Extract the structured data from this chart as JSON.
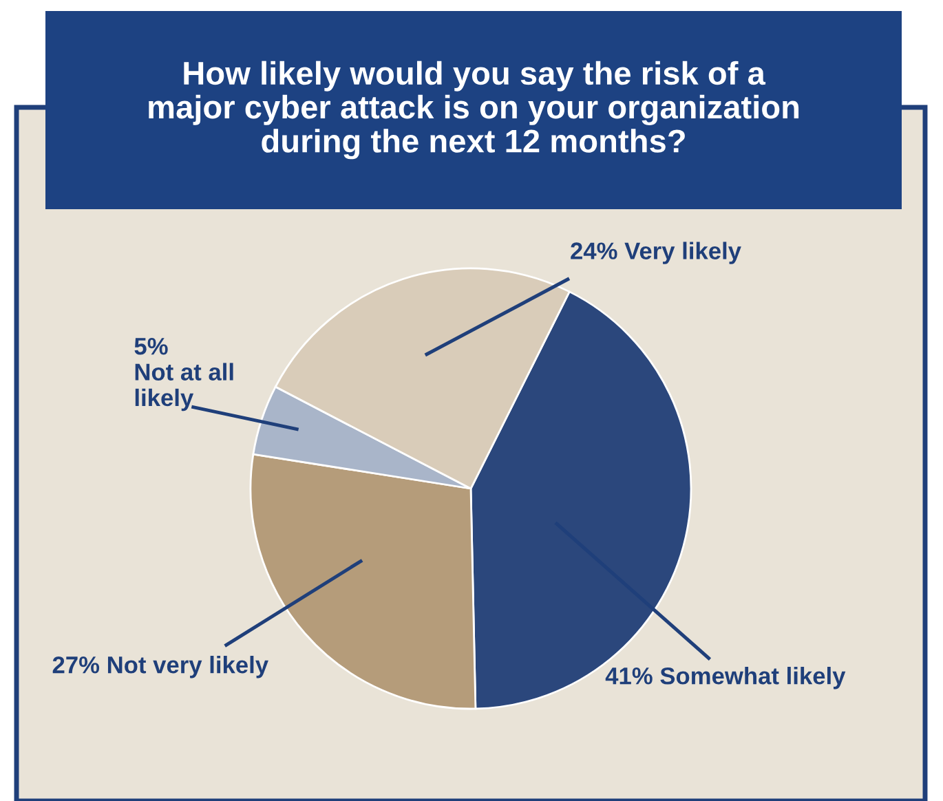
{
  "chart_data": {
    "type": "pie",
    "title": "How likely would you say the risk of a\nmajor cyber attack is on your organization\nduring the next 12 months?",
    "categories": [
      "Somewhat likely",
      "Not very likely",
      "Not at all\nlikely",
      "Very likely"
    ],
    "values": [
      41,
      27,
      5,
      24
    ],
    "value_labels": [
      "41%",
      "27%",
      "5%",
      "24%"
    ],
    "colors": [
      "#2b477c",
      "#b59c7a",
      "#a9b5c9",
      "#d9ccb9"
    ],
    "legend": false
  }
}
